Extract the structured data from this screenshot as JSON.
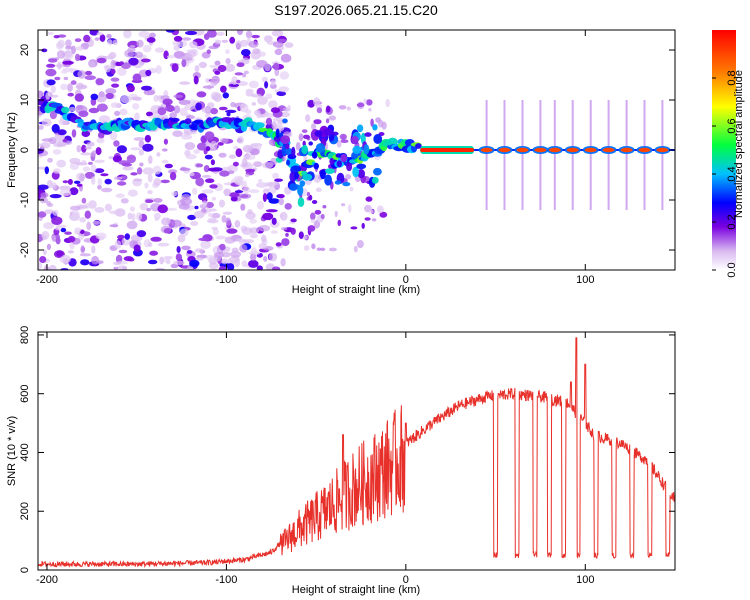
{
  "figure": {
    "title": "S197.2026.065.21.15.C20",
    "colors": {
      "axis": "#000000",
      "snr_line": "#e8302a",
      "spectro_bg": "#ffffff"
    }
  },
  "chart_data": [
    {
      "type": "heatmap",
      "name": "spectrogram",
      "title": "S197.2026.065.21.15.C20",
      "xlabel": "Height of straight line (km)",
      "ylabel": "Frequency (Hz)",
      "xlim": [
        -205,
        150
      ],
      "ylim": [
        -24,
        24
      ],
      "x_ticks": [
        -200,
        -100,
        0,
        100
      ],
      "y_ticks": [
        -20,
        -10,
        0,
        10,
        20
      ],
      "colorbar": {
        "label": "Normalized spectral amplitude",
        "range": [
          0.0,
          1.0
        ],
        "ticks": [
          0.0,
          0.2,
          0.4,
          0.6,
          0.8
        ],
        "colormap": [
          "#ffffff",
          "#d8b8f0",
          "#7a00e0",
          "#0000ff",
          "#00c0ff",
          "#00ff40",
          "#ffff00",
          "#ff7f00",
          "#ff0000"
        ]
      },
      "ridge": [
        {
          "x": -200,
          "f": 9.0
        },
        {
          "x": -190,
          "f": 7.5
        },
        {
          "x": -180,
          "f": 5.0
        },
        {
          "x": -165,
          "f": 5.0
        },
        {
          "x": -150,
          "f": 5.0
        },
        {
          "x": -135,
          "f": 5.5
        },
        {
          "x": -120,
          "f": 5.0
        },
        {
          "x": -100,
          "f": 5.5
        },
        {
          "x": -85,
          "f": 5.0
        },
        {
          "x": -75,
          "f": 3.0
        },
        {
          "x": -65,
          "f": 0.0
        },
        {
          "x": -60,
          "f": -6.0
        },
        {
          "x": -50,
          "f": 0.0
        },
        {
          "x": -40,
          "f": -1.0
        },
        {
          "x": -30,
          "f": -2.0
        },
        {
          "x": -20,
          "f": -1.0
        },
        {
          "x": -10,
          "f": 1.0
        },
        {
          "x": 0,
          "f": 1.0
        },
        {
          "x": 10,
          "f": 0.0
        },
        {
          "x": 150,
          "f": 0.0
        }
      ],
      "flat_band": {
        "x_start": 8,
        "x_end": 38,
        "f": 0.0,
        "amplitude": 0.95
      },
      "pulses_x": [
        45,
        55,
        65,
        75,
        83,
        93,
        103,
        113,
        123,
        133,
        143
      ],
      "pulse_amplitude": 0.9
    },
    {
      "type": "line",
      "name": "snr",
      "xlabel": "Height of straight line (km)",
      "ylabel": "SNR (10 * v/v)",
      "xlim": [
        -205,
        150
      ],
      "ylim": [
        0,
        810
      ],
      "x_ticks": [
        -200,
        -100,
        0,
        100
      ],
      "y_ticks": [
        0,
        200,
        400,
        600,
        800
      ],
      "envelope": [
        {
          "x": -205,
          "y": 20
        },
        {
          "x": -150,
          "y": 20
        },
        {
          "x": -110,
          "y": 25
        },
        {
          "x": -90,
          "y": 35
        },
        {
          "x": -75,
          "y": 60
        },
        {
          "x": -60,
          "y": 150
        },
        {
          "x": -45,
          "y": 220
        },
        {
          "x": -30,
          "y": 300
        },
        {
          "x": -15,
          "y": 360
        },
        {
          "x": 0,
          "y": 430
        },
        {
          "x": 15,
          "y": 500
        },
        {
          "x": 30,
          "y": 560
        },
        {
          "x": 45,
          "y": 590
        },
        {
          "x": 60,
          "y": 600
        },
        {
          "x": 75,
          "y": 590
        },
        {
          "x": 90,
          "y": 570
        },
        {
          "x": 105,
          "y": 460
        },
        {
          "x": 120,
          "y": 430
        },
        {
          "x": 135,
          "y": 370
        },
        {
          "x": 145,
          "y": 280
        },
        {
          "x": 150,
          "y": 240
        }
      ],
      "dips_x": [
        50,
        62,
        72,
        80,
        88,
        96,
        106,
        116,
        126,
        136,
        146
      ],
      "dip_level": 50,
      "spikes": [
        {
          "x": -35,
          "y": 460
        },
        {
          "x": 0,
          "y": 500
        },
        {
          "x": 95,
          "y": 790
        },
        {
          "x": 100,
          "y": 700
        },
        {
          "x": 92,
          "y": 640
        }
      ]
    }
  ]
}
